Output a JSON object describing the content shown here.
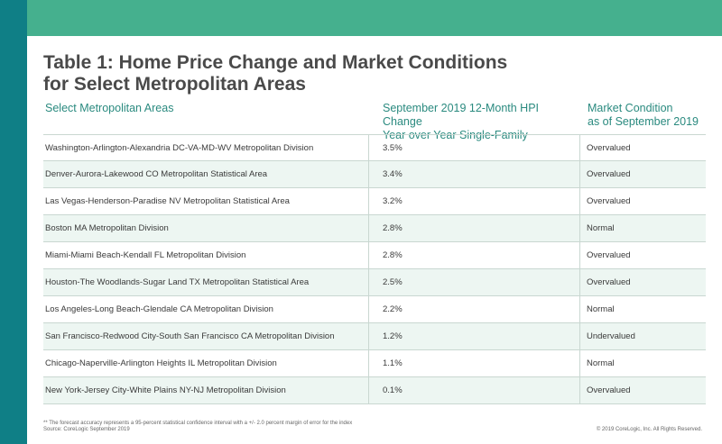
{
  "title_line1": "Table 1: Home Price Change and Market Conditions",
  "title_line2": "for Select Metropolitan Areas",
  "headers": {
    "area": "Select Metropolitan Areas",
    "change_line1": "September 2019 12-Month HPI Change",
    "change_line2": "Year over Year Single-Family",
    "cond_line1": "Market Condition",
    "cond_line2": "as of September 2019"
  },
  "rows": [
    {
      "area": "Washington-Arlington-Alexandria DC-VA-MD-WV Metropolitan Division",
      "change": "3.5%",
      "condition": "Overvalued"
    },
    {
      "area": "Denver-Aurora-Lakewood CO Metropolitan Statistical Area",
      "change": "3.4%",
      "condition": "Overvalued"
    },
    {
      "area": "Las Vegas-Henderson-Paradise NV Metropolitan Statistical Area",
      "change": "3.2%",
      "condition": "Overvalued"
    },
    {
      "area": "Boston MA Metropolitan Division",
      "change": "2.8%",
      "condition": "Normal"
    },
    {
      "area": "Miami-Miami Beach-Kendall FL Metropolitan Division",
      "change": "2.8%",
      "condition": "Overvalued"
    },
    {
      "area": "Houston-The Woodlands-Sugar Land TX Metropolitan Statistical Area",
      "change": "2.5%",
      "condition": "Overvalued"
    },
    {
      "area": "Los Angeles-Long Beach-Glendale CA Metropolitan Division",
      "change": "2.2%",
      "condition": "Normal"
    },
    {
      "area": "San Francisco-Redwood City-South San Francisco CA Metropolitan Division",
      "change": "1.2%",
      "condition": "Undervalued"
    },
    {
      "area": "Chicago-Naperville-Arlington Heights IL Metropolitan Division",
      "change": "1.1%",
      "condition": "Normal"
    },
    {
      "area": "New York-Jersey City-White Plains NY-NJ Metropolitan Division",
      "change": "0.1%",
      "condition": "Overvalued"
    }
  ],
  "footnote_line1": "** The forecast accuracy represents a 95-percent statistical confidence interval with a +/- 2.0 percent margin of error for the index",
  "footnote_line2": "Source: CoreLogic September 2019",
  "copyright": "© 2019 CoreLogic, Inc. All Rights Reserved.",
  "colors": {
    "top_band": "#45b08e",
    "left_band": "#0f7f86",
    "header_text": "#2a8a7f",
    "row_shade": "#edf6f2"
  }
}
